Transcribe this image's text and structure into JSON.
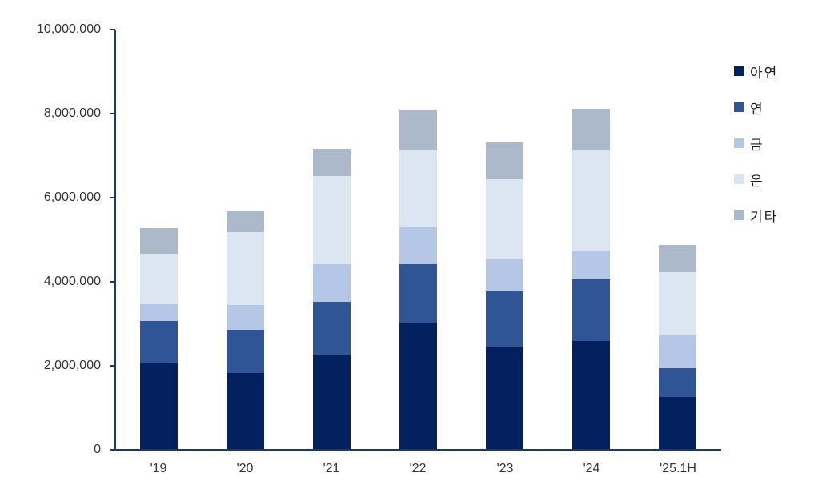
{
  "chart_data": {
    "type": "bar",
    "stacked": true,
    "title": "",
    "xlabel": "",
    "ylabel": "",
    "categories": [
      "'19",
      "'20",
      "'21",
      "'22",
      "'23",
      "'24",
      "'25.1H"
    ],
    "series": [
      {
        "name": "아연",
        "color": "#03215E",
        "values": [
          2050000,
          1820000,
          2270000,
          3030000,
          2450000,
          2590000,
          1260000
        ]
      },
      {
        "name": "연",
        "color": "#2F5597",
        "values": [
          1020000,
          1030000,
          1250000,
          1390000,
          1330000,
          1460000,
          680000
        ]
      },
      {
        "name": "금",
        "color": "#B4C7E7",
        "values": [
          390000,
          600000,
          900000,
          880000,
          760000,
          700000,
          790000
        ]
      },
      {
        "name": "은",
        "color": "#DCE6F2",
        "values": [
          1200000,
          1730000,
          2090000,
          1820000,
          1900000,
          2380000,
          1500000
        ]
      },
      {
        "name": "기타",
        "color": "#ACB9CA",
        "values": [
          610000,
          500000,
          660000,
          980000,
          870000,
          980000,
          640000
        ]
      }
    ],
    "y_axis": {
      "min": 0,
      "max": 10000000,
      "step": 2000000,
      "tick_labels": [
        "0",
        "2,000,000",
        "4,000,000",
        "6,000,000",
        "8,000,000",
        "10,000,000"
      ]
    },
    "legend": {
      "position": "right",
      "entries": [
        "아연",
        "연",
        "금",
        "은",
        "기타"
      ]
    },
    "grid": false,
    "axis_color": "#1F3864",
    "label_color": "#333333",
    "background_color": "#FFFFFF"
  }
}
